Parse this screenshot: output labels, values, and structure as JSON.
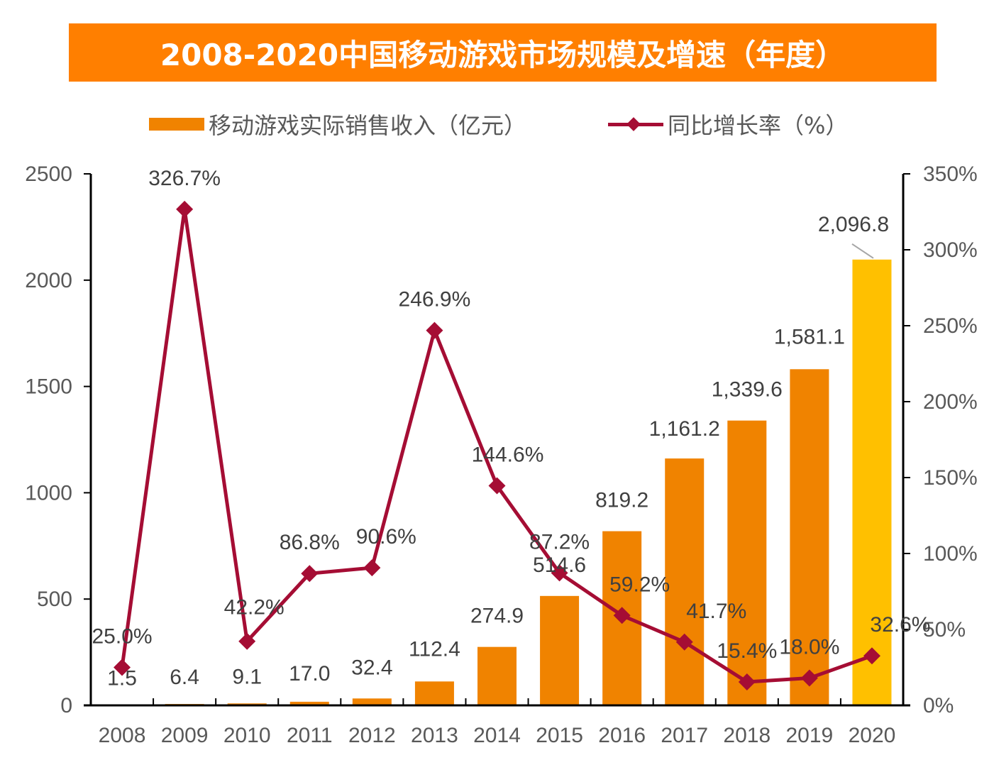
{
  "title": "2008-2020中国移动游戏市场规模及增速（年度）",
  "legend": {
    "bar_label": "移动游戏实际销售收入（亿元）",
    "line_label": "同比增长率（%）"
  },
  "colors": {
    "title_bg": "#FF7F00",
    "bar": "#F08300",
    "bar_highlight": "#FFC000",
    "line": "#A50D34",
    "text": "#595959"
  },
  "chart_data": {
    "type": "bar",
    "title": "2008-2020中国移动游戏市场规模及增速（年度）",
    "categories": [
      "2008",
      "2009",
      "2010",
      "2011",
      "2012",
      "2013",
      "2014",
      "2015",
      "2016",
      "2017",
      "2018",
      "2019",
      "2020"
    ],
    "series": [
      {
        "name": "移动游戏实际销售收入（亿元）",
        "type": "bar",
        "axis": "left",
        "values": [
          1.5,
          6.4,
          9.1,
          17.0,
          32.4,
          112.4,
          274.9,
          514.6,
          819.2,
          1161.2,
          1339.6,
          1581.1,
          2096.8
        ],
        "labels": [
          "1.5",
          "6.4",
          "9.1",
          "17.0",
          "32.4",
          "112.4",
          "274.9",
          "514.6",
          "819.2",
          "1,161.2",
          "1,339.6",
          "1,581.1",
          "2,096.8"
        ],
        "highlight_index": 12
      },
      {
        "name": "同比增长率（%）",
        "type": "line",
        "axis": "right",
        "marker": "diamond",
        "values": [
          25.0,
          326.7,
          42.2,
          86.8,
          90.6,
          246.9,
          144.6,
          87.2,
          59.2,
          41.7,
          15.4,
          18.0,
          32.6
        ],
        "labels": [
          "25.0%",
          "326.7%",
          "42.2%",
          "86.8%",
          "90.6%",
          "246.9%",
          "144.6%",
          "87.2%",
          "59.2%",
          "41.7%",
          "15.4%",
          "18.0%",
          "32.6%"
        ]
      }
    ],
    "y_left": {
      "ylim": [
        0,
        2500
      ],
      "ticks": [
        0,
        500,
        1000,
        1500,
        2000,
        2500
      ],
      "tick_labels": [
        "0",
        "500",
        "1000",
        "1500",
        "2000",
        "2500"
      ]
    },
    "y_right": {
      "ylim": [
        0,
        350
      ],
      "ticks": [
        0,
        50,
        100,
        150,
        200,
        250,
        300,
        350
      ],
      "tick_labels": [
        "0%",
        "50%",
        "100%",
        "150%",
        "200%",
        "250%",
        "300%",
        "350%"
      ]
    },
    "xlabel": "",
    "ylabel": "",
    "grid": false,
    "legend_position": "top-center"
  }
}
